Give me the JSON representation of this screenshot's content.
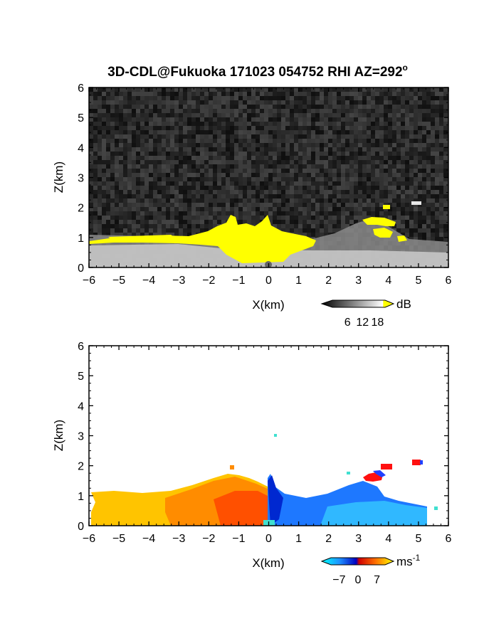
{
  "title": "3D-CDL@Fukuoka 171023 054752 RHI AZ=292",
  "title_superscript": "o",
  "chart_data": [
    {
      "type": "heatmap",
      "panel": "reflectivity",
      "xlabel": "X(km)",
      "ylabel": "Z(km)",
      "xlim": [
        -6,
        6
      ],
      "ylim": [
        0,
        6
      ],
      "x_ticks": [
        "-6",
        "-5",
        "-4",
        "-3",
        "-2",
        "-1",
        "0",
        "1",
        "2",
        "3",
        "4",
        "5",
        "6"
      ],
      "y_ticks": [
        "0",
        "1",
        "2",
        "3",
        "4",
        "5",
        "6"
      ],
      "background": "noise, dark gray",
      "colorbar": {
        "unit": "dB",
        "ticks": [
          "6",
          "12",
          "18"
        ],
        "range": [
          0,
          21
        ],
        "colors": [
          "#000000",
          "#ffffff",
          "#ffff00"
        ]
      },
      "features": [
        {
          "label": "echo over X -2.2 to 1.5 km, top 1.3-1.8 km",
          "value_db": 18,
          "color": "#ffff00"
        },
        {
          "label": "echo layer X -5.5 to -2 km, 0.9-1.0 km",
          "value_db": 18,
          "color": "#ffff00"
        },
        {
          "label": "cloud X 3 to 4.3 km, 1.0-2.0 km",
          "value_db": 18,
          "color": "#ffff00"
        }
      ]
    },
    {
      "type": "heatmap",
      "panel": "doppler_velocity",
      "xlabel": "X(km)",
      "ylabel": "Z(km)",
      "xlim": [
        -6,
        6
      ],
      "ylim": [
        0,
        6
      ],
      "x_ticks": [
        "-6",
        "-5",
        "-4",
        "-3",
        "-2",
        "-1",
        "0",
        "1",
        "2",
        "3",
        "4",
        "5",
        "6"
      ],
      "y_ticks": [
        "0",
        "1",
        "2",
        "3",
        "4",
        "5",
        "6"
      ],
      "background": "white (no data)",
      "colorbar": {
        "unit": "ms",
        "unit_superscript": "-1",
        "ticks": [
          "-7",
          "0",
          "7"
        ],
        "range": [
          -10,
          10
        ],
        "colors": [
          "#00ffff",
          "#0050ff",
          "#0000c0",
          "#ff0000",
          "#ff8000",
          "#ffff00"
        ]
      },
      "features": [
        {
          "label": "X -6 to 0 km, 0-1.2 km",
          "velocity_ms": 7,
          "color": "#ffc000"
        },
        {
          "label": "X -2.5 to 0 km near ground",
          "velocity_ms": 4,
          "color": "#ff6000"
        },
        {
          "label": "X 0 to 4.8 km, 0-1.0 km",
          "velocity_ms": -6,
          "color": "#1e90ff"
        },
        {
          "label": "cloud X 3.2 to 5.1 km, 1.6-2.2 km",
          "velocity_ms": 3,
          "color": "#ff1010"
        }
      ]
    }
  ]
}
